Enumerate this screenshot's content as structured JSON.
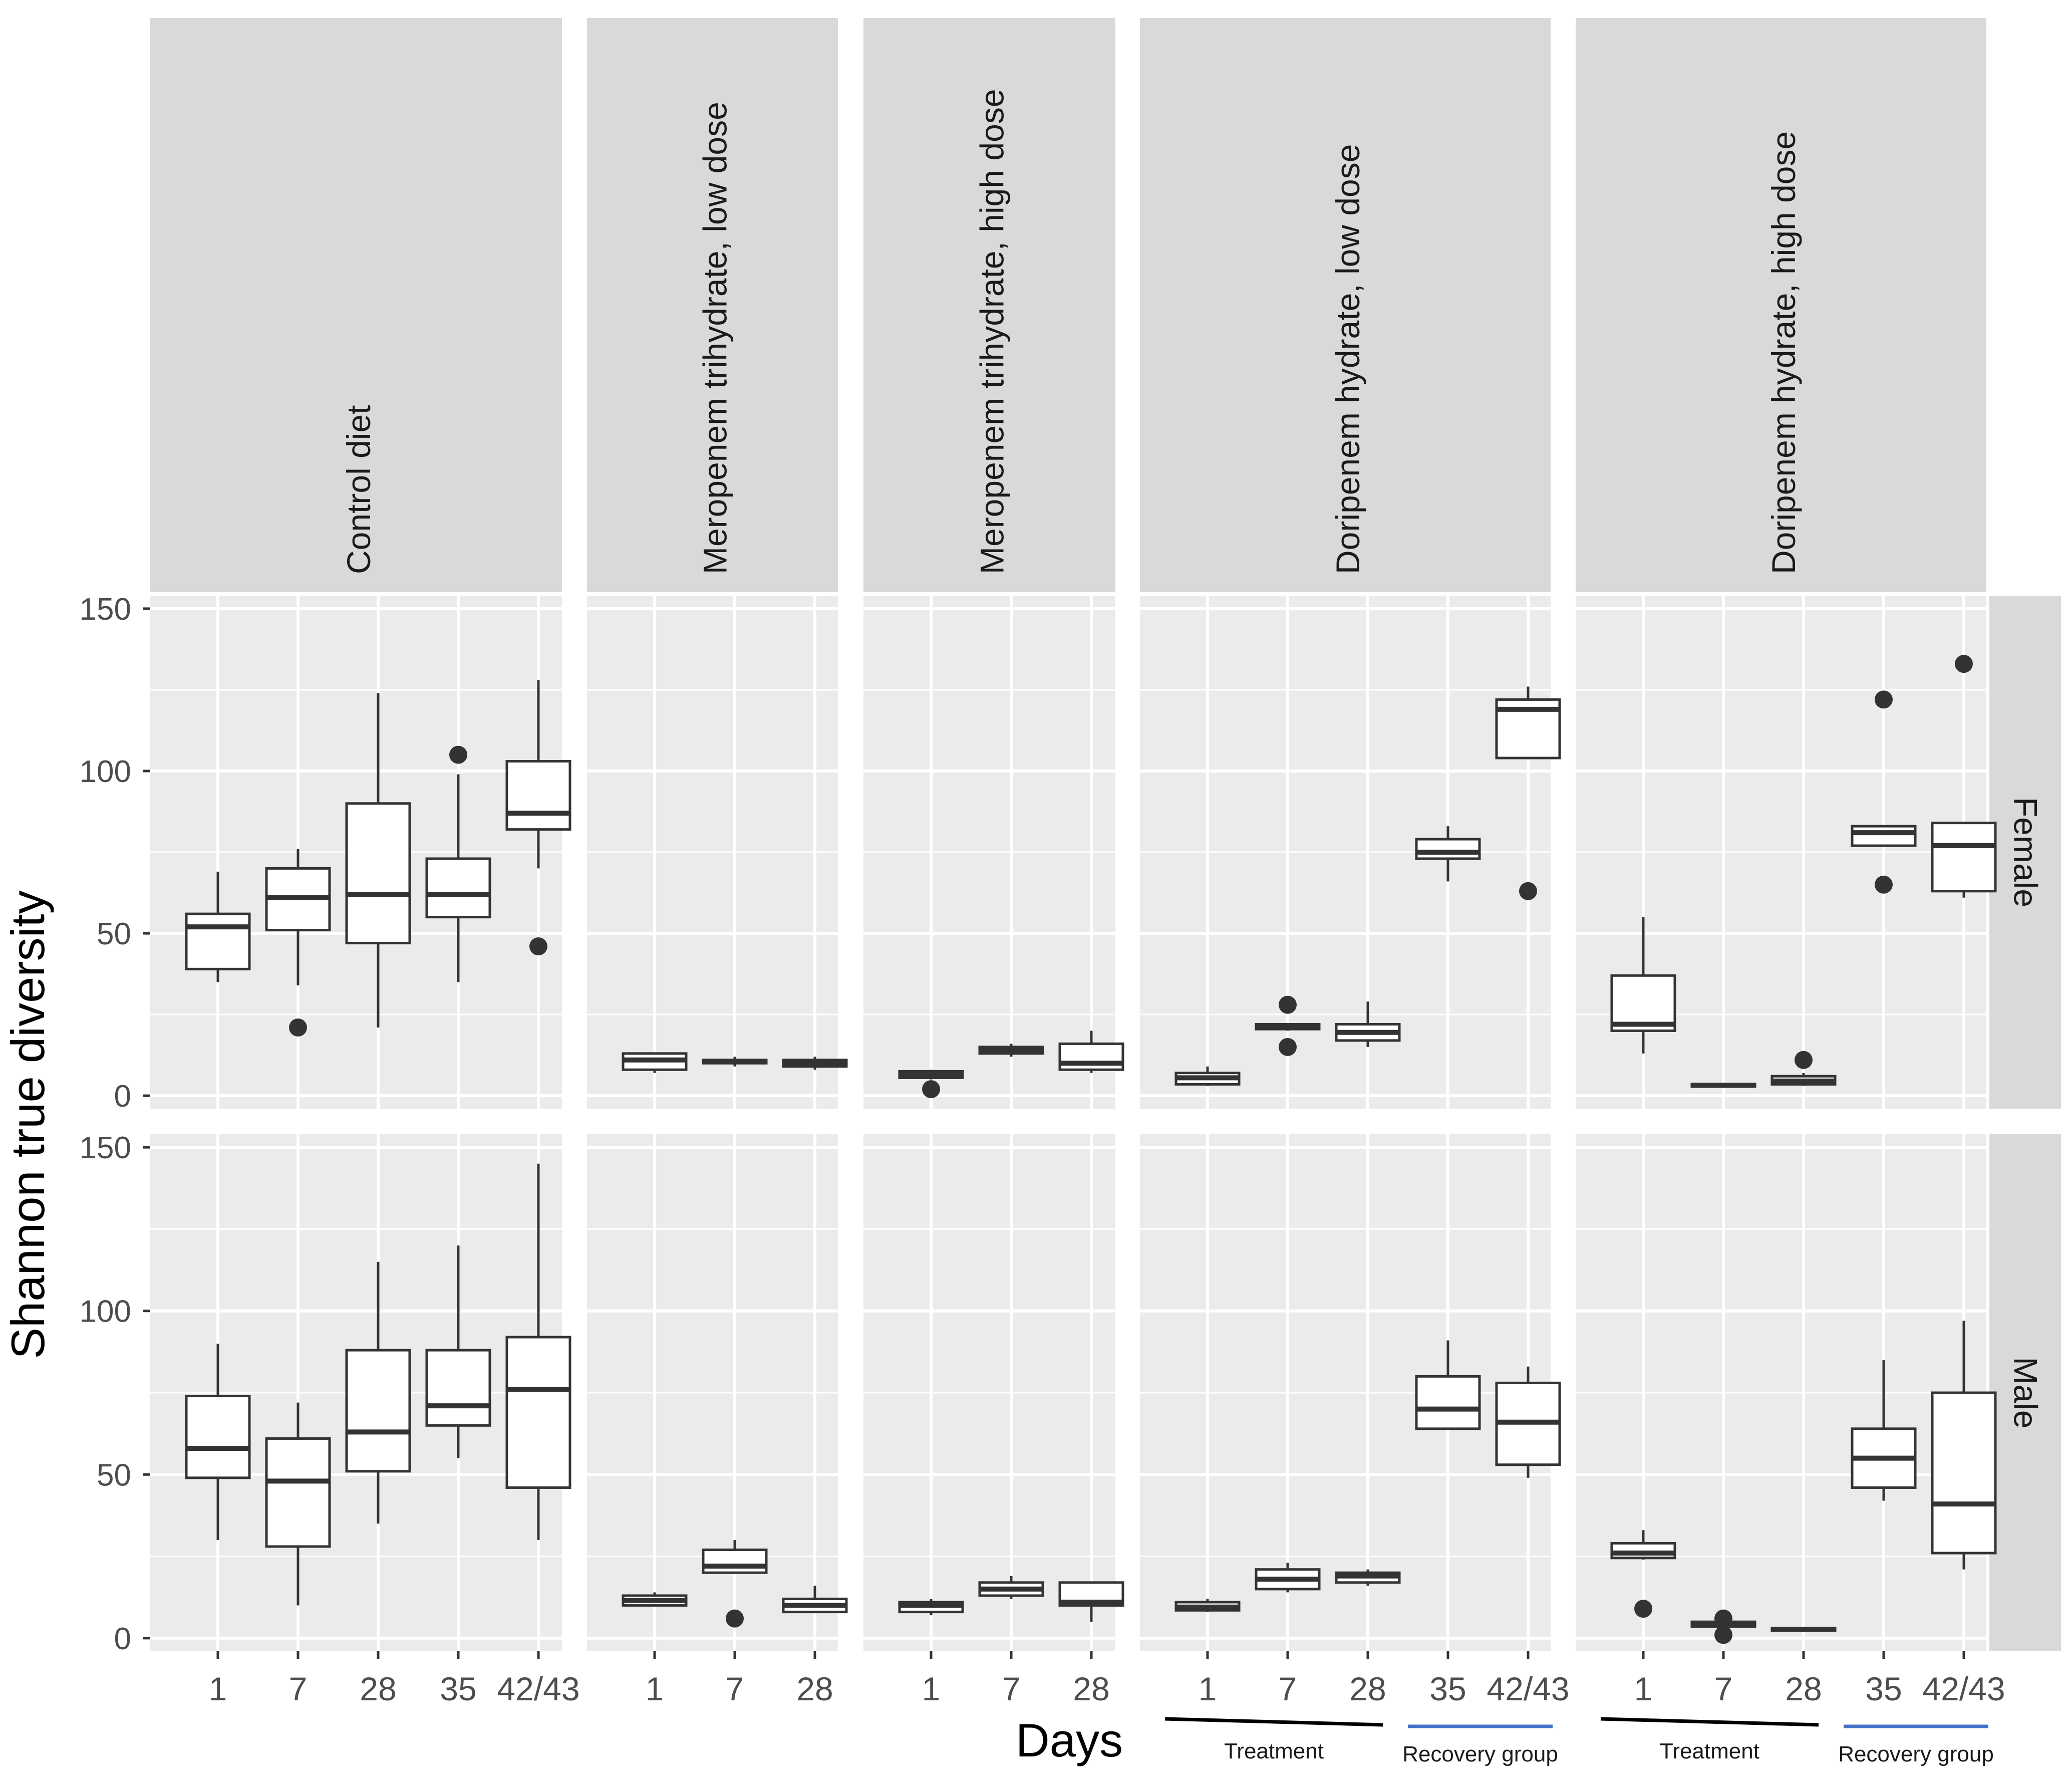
{
  "chart_data": {
    "type": "boxplot",
    "title": "",
    "xlabel": "Days",
    "ylabel": "Shannon true diversity",
    "ylim": [
      -4,
      154
    ],
    "yticks": [
      0,
      50,
      100,
      150
    ],
    "rows": [
      "Female",
      "Male"
    ],
    "columns": [
      "Control diet",
      "Meropenem trihydrate, low dose",
      "Meropenem trihydrate, high dose",
      "Doripenem hydrate, low dose",
      "Doripenem hydrate, high dose"
    ],
    "column_days": [
      [
        "1",
        "7",
        "28",
        "35",
        "42/43"
      ],
      [
        "1",
        "7",
        "28"
      ],
      [
        "1",
        "7",
        "28"
      ],
      [
        "1",
        "7",
        "28",
        "35",
        "42/43"
      ],
      [
        "1",
        "7",
        "28",
        "35",
        "42/43"
      ]
    ],
    "phase_labels": {
      "treatment": "Treatment",
      "recovery": "Recovery group",
      "treatment_color": "#000000",
      "recovery_color": "#4472C4",
      "applies_to_columns": [
        3,
        4
      ]
    },
    "panels": [
      {
        "row": "Female",
        "column": "Control diet",
        "boxes": [
          {
            "day": "1",
            "lo": 35,
            "q1": 39,
            "med": 52,
            "q3": 56,
            "hi": 69,
            "outliers": []
          },
          {
            "day": "7",
            "lo": 34,
            "q1": 51,
            "med": 61,
            "q3": 70,
            "hi": 76,
            "outliers": [
              21
            ]
          },
          {
            "day": "28",
            "lo": 21,
            "q1": 47,
            "med": 62,
            "q3": 90,
            "hi": 124,
            "outliers": []
          },
          {
            "day": "35",
            "lo": 35,
            "q1": 55,
            "med": 62,
            "q3": 73,
            "hi": 99,
            "outliers": [
              105
            ]
          },
          {
            "day": "42/43",
            "lo": 70,
            "q1": 82,
            "med": 87,
            "q3": 103,
            "hi": 128,
            "outliers": [
              46
            ]
          }
        ]
      },
      {
        "row": "Female",
        "column": "Meropenem trihydrate, low dose",
        "boxes": [
          {
            "day": "1",
            "lo": 7,
            "q1": 8,
            "med": 11,
            "q3": 13,
            "hi": 13,
            "outliers": []
          },
          {
            "day": "7",
            "lo": 9,
            "q1": 10,
            "med": 10.5,
            "q3": 11,
            "hi": 12,
            "outliers": []
          },
          {
            "day": "28",
            "lo": 8,
            "q1": 9,
            "med": 10,
            "q3": 11,
            "hi": 12,
            "outliers": []
          }
        ]
      },
      {
        "row": "Female",
        "column": "Meropenem trihydrate, high dose",
        "boxes": [
          {
            "day": "1",
            "lo": 5,
            "q1": 5.5,
            "med": 6.5,
            "q3": 7.5,
            "hi": 8,
            "outliers": [
              2
            ]
          },
          {
            "day": "7",
            "lo": 12,
            "q1": 13,
            "med": 14,
            "q3": 15,
            "hi": 16,
            "outliers": []
          },
          {
            "day": "28",
            "lo": 7,
            "q1": 8,
            "med": 10,
            "q3": 16,
            "hi": 20,
            "outliers": []
          }
        ]
      },
      {
        "row": "Female",
        "column": "Doripenem hydrate, low dose",
        "boxes": [
          {
            "day": "1",
            "lo": 3,
            "q1": 3.5,
            "med": 5.5,
            "q3": 7,
            "hi": 9,
            "outliers": []
          },
          {
            "day": "7",
            "lo": 20,
            "q1": 20.5,
            "med": 21.5,
            "q3": 22,
            "hi": 22,
            "outliers": [
              28,
              15
            ]
          },
          {
            "day": "28",
            "lo": 15,
            "q1": 17,
            "med": 19.5,
            "q3": 22,
            "hi": 29,
            "outliers": []
          },
          {
            "day": "35",
            "lo": 66,
            "q1": 73,
            "med": 75,
            "q3": 79,
            "hi": 83,
            "outliers": []
          },
          {
            "day": "42/43",
            "lo": 104,
            "q1": 104,
            "med": 119,
            "q3": 122,
            "hi": 126,
            "outliers": [
              63
            ]
          }
        ]
      },
      {
        "row": "Female",
        "column": "Doripenem hydrate, high dose",
        "boxes": [
          {
            "day": "1",
            "lo": 13,
            "q1": 20,
            "med": 22,
            "q3": 37,
            "hi": 55,
            "outliers": []
          },
          {
            "day": "7",
            "lo": 2.5,
            "q1": 2.8,
            "med": 3.2,
            "q3": 3.6,
            "hi": 4,
            "outliers": []
          },
          {
            "day": "28",
            "lo": 3,
            "q1": 3.5,
            "med": 4.5,
            "q3": 6,
            "hi": 7,
            "outliers": [
              11
            ]
          },
          {
            "day": "35",
            "lo": 77,
            "q1": 77,
            "med": 81,
            "q3": 83,
            "hi": 83,
            "outliers": [
              122,
              65
            ]
          },
          {
            "day": "42/43",
            "lo": 61,
            "q1": 63,
            "med": 77,
            "q3": 84,
            "hi": 84,
            "outliers": [
              133
            ]
          }
        ]
      },
      {
        "row": "Male",
        "column": "Control diet",
        "boxes": [
          {
            "day": "1",
            "lo": 30,
            "q1": 49,
            "med": 58,
            "q3": 74,
            "hi": 90,
            "outliers": []
          },
          {
            "day": "7",
            "lo": 10,
            "q1": 28,
            "med": 48,
            "q3": 61,
            "hi": 72,
            "outliers": []
          },
          {
            "day": "28",
            "lo": 35,
            "q1": 51,
            "med": 63,
            "q3": 88,
            "hi": 115,
            "outliers": []
          },
          {
            "day": "35",
            "lo": 55,
            "q1": 65,
            "med": 71,
            "q3": 88,
            "hi": 120,
            "outliers": []
          },
          {
            "day": "42/43",
            "lo": 30,
            "q1": 46,
            "med": 76,
            "q3": 92,
            "hi": 145,
            "outliers": []
          }
        ]
      },
      {
        "row": "Male",
        "column": "Meropenem trihydrate, low dose",
        "boxes": [
          {
            "day": "1",
            "lo": 10,
            "q1": 10,
            "med": 11.5,
            "q3": 13,
            "hi": 14,
            "outliers": []
          },
          {
            "day": "7",
            "lo": 20,
            "q1": 20,
            "med": 22,
            "q3": 27,
            "hi": 30,
            "outliers": [
              6
            ]
          },
          {
            "day": "28",
            "lo": 8,
            "q1": 8,
            "med": 10,
            "q3": 12,
            "hi": 16,
            "outliers": []
          }
        ]
      },
      {
        "row": "Male",
        "column": "Meropenem trihydrate, high dose",
        "boxes": [
          {
            "day": "1",
            "lo": 7,
            "q1": 8,
            "med": 10,
            "q3": 11,
            "hi": 12,
            "outliers": []
          },
          {
            "day": "7",
            "lo": 12,
            "q1": 13,
            "med": 15,
            "q3": 17,
            "hi": 19,
            "outliers": []
          },
          {
            "day": "28",
            "lo": 5,
            "q1": 10,
            "med": 11,
            "q3": 17,
            "hi": 17,
            "outliers": []
          }
        ]
      },
      {
        "row": "Male",
        "column": "Doripenem hydrate, low dose",
        "boxes": [
          {
            "day": "1",
            "lo": 8,
            "q1": 8.5,
            "med": 9.5,
            "q3": 11,
            "hi": 12,
            "outliers": []
          },
          {
            "day": "7",
            "lo": 14,
            "q1": 15,
            "med": 18,
            "q3": 21,
            "hi": 23,
            "outliers": []
          },
          {
            "day": "28",
            "lo": 16,
            "q1": 17,
            "med": 19,
            "q3": 20,
            "hi": 21,
            "outliers": []
          },
          {
            "day": "35",
            "lo": 64,
            "q1": 64,
            "med": 70,
            "q3": 80,
            "hi": 91,
            "outliers": []
          },
          {
            "day": "42/43",
            "lo": 49,
            "q1": 53,
            "med": 66,
            "q3": 78,
            "hi": 83,
            "outliers": []
          }
        ]
      },
      {
        "row": "Male",
        "column": "Doripenem hydrate, high dose",
        "boxes": [
          {
            "day": "1",
            "lo": 24,
            "q1": 24.5,
            "med": 26,
            "q3": 29,
            "hi": 33,
            "outliers": [
              9
            ]
          },
          {
            "day": "7",
            "lo": 3,
            "q1": 3.5,
            "med": 4.5,
            "q3": 5,
            "hi": 5.5,
            "outliers": [
              6,
              1
            ]
          },
          {
            "day": "28",
            "lo": 2,
            "q1": 2.3,
            "med": 2.7,
            "q3": 3,
            "hi": 3.5,
            "outliers": []
          },
          {
            "day": "35",
            "lo": 42,
            "q1": 46,
            "med": 55,
            "q3": 64,
            "hi": 85,
            "outliers": []
          },
          {
            "day": "42/43",
            "lo": 21,
            "q1": 26,
            "med": 41,
            "q3": 75,
            "hi": 97,
            "outliers": []
          }
        ]
      }
    ]
  },
  "colors": {
    "panel_background": "#EBEBEB",
    "strip_background": "#D9D9D9",
    "grid": "#FFFFFF",
    "box_fill": "#FFFFFF",
    "box_stroke": "#333333",
    "text": "#1A1A1A",
    "tick_label": "#4D4D4D"
  }
}
